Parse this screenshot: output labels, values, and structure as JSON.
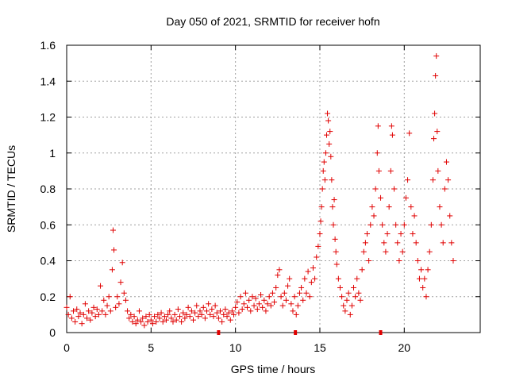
{
  "chart_data": {
    "type": "scatter",
    "title": "Day 050 of 2021, SRMTID for receiver hofn",
    "xlabel": "GPS time / hours",
    "ylabel": "SRMTID / TECUs",
    "xlim": [
      0,
      24.5
    ],
    "ylim": [
      0,
      1.6
    ],
    "x_ticks": [
      0,
      5,
      10,
      15,
      20
    ],
    "x_tick_labels": [
      "0",
      "5",
      "10",
      "15",
      "20"
    ],
    "y_ticks": [
      0,
      0.2,
      0.4,
      0.6,
      0.8,
      1,
      1.2,
      1.4,
      1.6
    ],
    "y_tick_labels": [
      "0",
      "0.2",
      "0.4",
      "0.6",
      "0.8",
      "1",
      "1.2",
      "1.4",
      "1.6"
    ],
    "grid": true,
    "marker": "+",
    "color": "#e00000",
    "series": [
      {
        "name": "SRMTID",
        "points": [
          [
            0.0,
            0.14
          ],
          [
            0.1,
            0.1
          ],
          [
            0.2,
            0.2
          ],
          [
            0.3,
            0.08
          ],
          [
            0.4,
            0.12
          ],
          [
            0.5,
            0.06
          ],
          [
            0.6,
            0.13
          ],
          [
            0.7,
            0.09
          ],
          [
            0.8,
            0.11
          ],
          [
            0.9,
            0.05
          ],
          [
            1.0,
            0.1
          ],
          [
            1.1,
            0.16
          ],
          [
            1.2,
            0.08
          ],
          [
            1.3,
            0.12
          ],
          [
            1.4,
            0.07
          ],
          [
            1.5,
            0.11
          ],
          [
            1.6,
            0.14
          ],
          [
            1.7,
            0.09
          ],
          [
            1.8,
            0.13
          ],
          [
            1.9,
            0.1
          ],
          [
            2.0,
            0.26
          ],
          [
            2.1,
            0.12
          ],
          [
            2.2,
            0.18
          ],
          [
            2.3,
            0.1
          ],
          [
            2.4,
            0.15
          ],
          [
            2.5,
            0.2
          ],
          [
            2.6,
            0.12
          ],
          [
            2.7,
            0.35
          ],
          [
            2.75,
            0.57
          ],
          [
            2.8,
            0.46
          ],
          [
            2.9,
            0.14
          ],
          [
            3.0,
            0.2
          ],
          [
            3.1,
            0.16
          ],
          [
            3.2,
            0.28
          ],
          [
            3.3,
            0.39
          ],
          [
            3.4,
            0.22
          ],
          [
            3.5,
            0.18
          ],
          [
            3.6,
            0.12
          ],
          [
            3.7,
            0.08
          ],
          [
            3.8,
            0.1
          ],
          [
            3.9,
            0.06
          ],
          [
            4.0,
            0.09
          ],
          [
            4.1,
            0.05
          ],
          [
            4.2,
            0.07
          ],
          [
            4.3,
            0.12
          ],
          [
            4.4,
            0.06
          ],
          [
            4.5,
            0.08
          ],
          [
            4.6,
            0.04
          ],
          [
            4.7,
            0.09
          ],
          [
            4.8,
            0.06
          ],
          [
            4.9,
            0.1
          ],
          [
            5.0,
            0.07
          ],
          [
            5.1,
            0.05
          ],
          [
            5.2,
            0.09
          ],
          [
            5.3,
            0.06
          ],
          [
            5.4,
            0.1
          ],
          [
            5.5,
            0.08
          ],
          [
            5.6,
            0.11
          ],
          [
            5.7,
            0.06
          ],
          [
            5.8,
            0.09
          ],
          [
            5.9,
            0.07
          ],
          [
            6.0,
            0.1
          ],
          [
            6.1,
            0.12
          ],
          [
            6.2,
            0.08
          ],
          [
            6.3,
            0.06
          ],
          [
            6.4,
            0.1
          ],
          [
            6.5,
            0.07
          ],
          [
            6.6,
            0.13
          ],
          [
            6.7,
            0.09
          ],
          [
            6.8,
            0.06
          ],
          [
            6.9,
            0.11
          ],
          [
            7.0,
            0.08
          ],
          [
            7.1,
            0.1
          ],
          [
            7.2,
            0.14
          ],
          [
            7.3,
            0.09
          ],
          [
            7.4,
            0.12
          ],
          [
            7.5,
            0.07
          ],
          [
            7.6,
            0.11
          ],
          [
            7.7,
            0.15
          ],
          [
            7.8,
            0.09
          ],
          [
            7.9,
            0.12
          ],
          [
            8.0,
            0.1
          ],
          [
            8.1,
            0.14
          ],
          [
            8.2,
            0.08
          ],
          [
            8.3,
            0.12
          ],
          [
            8.4,
            0.16
          ],
          [
            8.5,
            0.1
          ],
          [
            8.6,
            0.13
          ],
          [
            8.7,
            0.09
          ],
          [
            8.8,
            0.15
          ],
          [
            8.9,
            0.11
          ],
          [
            9.0,
            0.08
          ],
          [
            9.1,
            0.12
          ],
          [
            9.2,
            0.06
          ],
          [
            9.3,
            0.1
          ],
          [
            9.4,
            0.13
          ],
          [
            9.5,
            0.09
          ],
          [
            9.6,
            0.11
          ],
          [
            9.7,
            0.07
          ],
          [
            9.8,
            0.12
          ],
          [
            9.9,
            0.1
          ],
          [
            10.0,
            0.14
          ],
          [
            10.1,
            0.17
          ],
          [
            10.2,
            0.11
          ],
          [
            10.3,
            0.2
          ],
          [
            10.4,
            0.13
          ],
          [
            10.5,
            0.16
          ],
          [
            10.6,
            0.22
          ],
          [
            10.7,
            0.14
          ],
          [
            10.8,
            0.18
          ],
          [
            10.9,
            0.12
          ],
          [
            11.0,
            0.2
          ],
          [
            11.1,
            0.15
          ],
          [
            11.2,
            0.19
          ],
          [
            11.3,
            0.13
          ],
          [
            11.4,
            0.16
          ],
          [
            11.5,
            0.21
          ],
          [
            11.6,
            0.14
          ],
          [
            11.7,
            0.18
          ],
          [
            11.8,
            0.12
          ],
          [
            11.9,
            0.16
          ],
          [
            12.0,
            0.2
          ],
          [
            12.1,
            0.15
          ],
          [
            12.2,
            0.22
          ],
          [
            12.3,
            0.17
          ],
          [
            12.4,
            0.25
          ],
          [
            12.5,
            0.32
          ],
          [
            12.6,
            0.35
          ],
          [
            12.7,
            0.2
          ],
          [
            12.8,
            0.15
          ],
          [
            12.9,
            0.22
          ],
          [
            13.0,
            0.18
          ],
          [
            13.1,
            0.26
          ],
          [
            13.2,
            0.3
          ],
          [
            13.3,
            0.16
          ],
          [
            13.4,
            0.12
          ],
          [
            13.5,
            0.2
          ],
          [
            13.6,
            0.1
          ],
          [
            13.7,
            0.15
          ],
          [
            13.8,
            0.22
          ],
          [
            13.9,
            0.25
          ],
          [
            14.0,
            0.18
          ],
          [
            14.1,
            0.3
          ],
          [
            14.2,
            0.22
          ],
          [
            14.3,
            0.34
          ],
          [
            14.4,
            0.2
          ],
          [
            14.5,
            0.28
          ],
          [
            14.6,
            0.36
          ],
          [
            14.7,
            0.3
          ],
          [
            14.8,
            0.42
          ],
          [
            14.9,
            0.48
          ],
          [
            15.0,
            0.55
          ],
          [
            15.05,
            0.62
          ],
          [
            15.1,
            0.7
          ],
          [
            15.15,
            0.8
          ],
          [
            15.2,
            0.9
          ],
          [
            15.25,
            0.95
          ],
          [
            15.3,
            0.85
          ],
          [
            15.35,
            1.0
          ],
          [
            15.4,
            1.1
          ],
          [
            15.45,
            1.22
          ],
          [
            15.5,
            1.18
          ],
          [
            15.55,
            1.05
          ],
          [
            15.6,
            1.12
          ],
          [
            15.65,
            0.98
          ],
          [
            15.7,
            0.85
          ],
          [
            15.75,
            0.7
          ],
          [
            15.8,
            0.6
          ],
          [
            15.85,
            0.74
          ],
          [
            15.9,
            0.52
          ],
          [
            15.95,
            0.45
          ],
          [
            16.0,
            0.38
          ],
          [
            16.1,
            0.3
          ],
          [
            16.2,
            0.25
          ],
          [
            16.3,
            0.2
          ],
          [
            16.4,
            0.15
          ],
          [
            16.5,
            0.12
          ],
          [
            16.6,
            0.18
          ],
          [
            16.7,
            0.22
          ],
          [
            16.8,
            0.1
          ],
          [
            16.9,
            0.15
          ],
          [
            17.0,
            0.25
          ],
          [
            17.1,
            0.2
          ],
          [
            17.2,
            0.3
          ],
          [
            17.3,
            0.22
          ],
          [
            17.4,
            0.18
          ],
          [
            17.5,
            0.35
          ],
          [
            17.6,
            0.45
          ],
          [
            17.7,
            0.5
          ],
          [
            17.8,
            0.55
          ],
          [
            17.9,
            0.4
          ],
          [
            18.0,
            0.6
          ],
          [
            18.1,
            0.7
          ],
          [
            18.2,
            0.65
          ],
          [
            18.3,
            0.8
          ],
          [
            18.4,
            1.0
          ],
          [
            18.45,
            1.15
          ],
          [
            18.5,
            0.9
          ],
          [
            18.6,
            0.75
          ],
          [
            18.7,
            0.6
          ],
          [
            18.8,
            0.5
          ],
          [
            18.9,
            0.45
          ],
          [
            19.0,
            0.55
          ],
          [
            19.1,
            0.7
          ],
          [
            19.2,
            0.9
          ],
          [
            19.25,
            1.15
          ],
          [
            19.3,
            1.1
          ],
          [
            19.4,
            0.8
          ],
          [
            19.5,
            0.6
          ],
          [
            19.6,
            0.5
          ],
          [
            19.7,
            0.4
          ],
          [
            19.8,
            0.55
          ],
          [
            19.9,
            0.45
          ],
          [
            20.0,
            0.6
          ],
          [
            20.1,
            0.75
          ],
          [
            20.2,
            0.85
          ],
          [
            20.3,
            1.11
          ],
          [
            20.4,
            0.7
          ],
          [
            20.5,
            0.55
          ],
          [
            20.6,
            0.65
          ],
          [
            20.7,
            0.5
          ],
          [
            20.8,
            0.4
          ],
          [
            20.9,
            0.3
          ],
          [
            21.0,
            0.35
          ],
          [
            21.1,
            0.25
          ],
          [
            21.2,
            0.3
          ],
          [
            21.3,
            0.2
          ],
          [
            21.4,
            0.35
          ],
          [
            21.5,
            0.45
          ],
          [
            21.6,
            0.6
          ],
          [
            21.7,
            0.85
          ],
          [
            21.75,
            1.08
          ],
          [
            21.8,
            1.22
          ],
          [
            21.85,
            1.43
          ],
          [
            21.9,
            1.54
          ],
          [
            21.95,
            1.12
          ],
          [
            22.0,
            0.9
          ],
          [
            22.1,
            0.7
          ],
          [
            22.2,
            0.6
          ],
          [
            22.3,
            0.5
          ],
          [
            22.4,
            0.8
          ],
          [
            22.5,
            0.95
          ],
          [
            22.6,
            0.85
          ],
          [
            22.7,
            0.65
          ],
          [
            22.8,
            0.5
          ],
          [
            22.9,
            0.4
          ]
        ]
      }
    ],
    "gap_markers_x": [
      9.0,
      13.55,
      18.6
    ]
  }
}
